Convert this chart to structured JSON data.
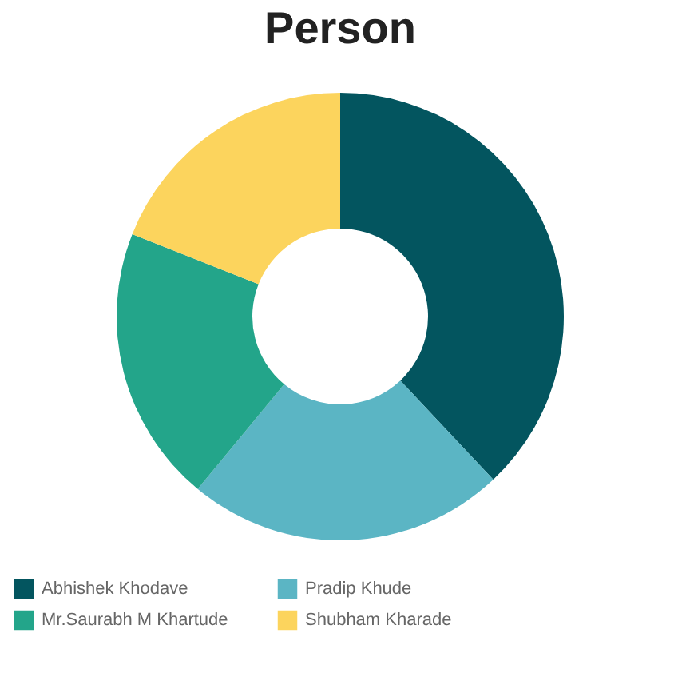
{
  "chart_data": {
    "type": "donut",
    "title": "Person",
    "categories": [
      "Abhishek Khodave",
      "Pradip Khude",
      "Mr.Saurabh M Khartude",
      "Shubham Kharade"
    ],
    "values": [
      38,
      23,
      20,
      19
    ],
    "colors": [
      "#03555f",
      "#5bb5c4",
      "#23a58a",
      "#fcd45d"
    ],
    "legend": "bottom"
  }
}
